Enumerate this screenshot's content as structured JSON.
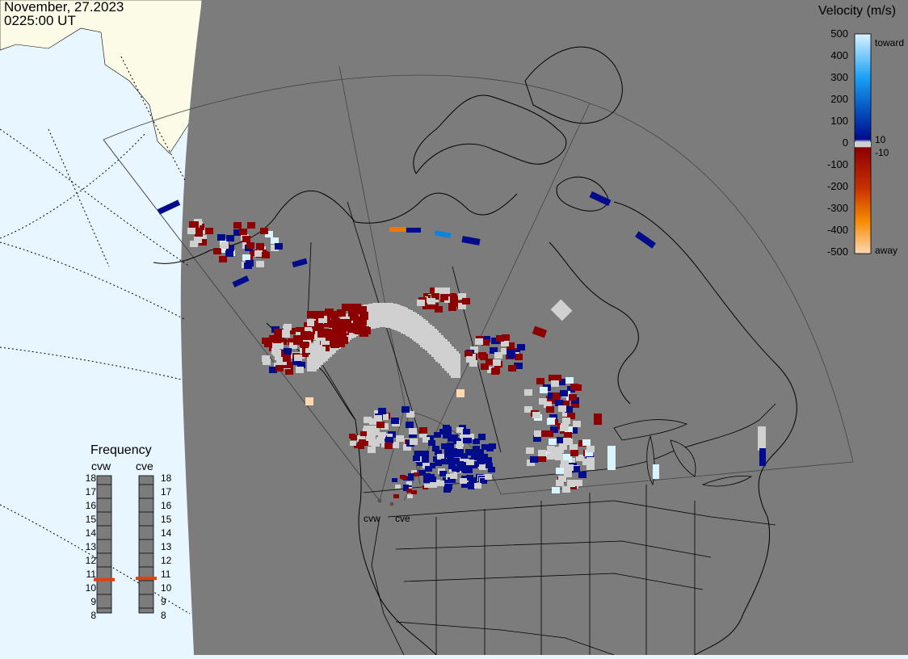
{
  "header": {
    "date": "November, 27.2023",
    "time": "0225:00 UT"
  },
  "velocity_scale": {
    "title": "Velocity (m/s)",
    "ticks": [
      "500",
      "400",
      "300",
      "200",
      "100",
      "0",
      "-100",
      "-200",
      "-300",
      "-400",
      "-500"
    ],
    "toward_label": "toward",
    "away_label": "away",
    "pos_threshold": "10",
    "neg_threshold": "-10",
    "colors": {
      "toward_high": "#d9f3ff",
      "toward_mid": "#0a84e0",
      "toward_low": "#000c8c",
      "away_low": "#8c0000",
      "away_mid": "#f07800",
      "away_high": "#ffd8b0",
      "ground_scatter": "#d0d0d0"
    }
  },
  "frequency_panel": {
    "title": "Frequency",
    "radars": [
      {
        "name": "cvw",
        "frequency_mhz": 10.6
      },
      {
        "name": "cve",
        "frequency_mhz": 10.7
      }
    ],
    "ticks": [
      "18",
      "17",
      "16",
      "15",
      "14",
      "13",
      "12",
      "11",
      "10",
      "9",
      "8"
    ],
    "marker_color": "#e0400a"
  },
  "radar_sites": [
    "cvw",
    "cve"
  ],
  "map": {
    "land_color": "#7c7c7c",
    "night_ocean_color": "#7c7c7c",
    "day_ocean_color": "#e8f6ff",
    "day_land_color": "#fbfbe8",
    "border_color": "#000000"
  }
}
